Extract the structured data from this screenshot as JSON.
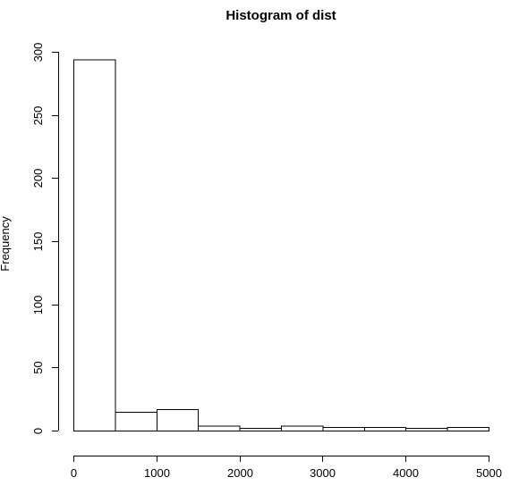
{
  "chart_data": {
    "type": "bar",
    "title": "Histogram of dist",
    "xlabel": "",
    "ylabel": "Frequency",
    "bins": [
      {
        "start": 0,
        "end": 500,
        "count": 294
      },
      {
        "start": 500,
        "end": 1000,
        "count": 15
      },
      {
        "start": 1000,
        "end": 1500,
        "count": 17
      },
      {
        "start": 1500,
        "end": 2000,
        "count": 4
      },
      {
        "start": 2000,
        "end": 2500,
        "count": 2
      },
      {
        "start": 2500,
        "end": 3000,
        "count": 4
      },
      {
        "start": 3000,
        "end": 3500,
        "count": 3
      },
      {
        "start": 3500,
        "end": 4000,
        "count": 3
      },
      {
        "start": 4000,
        "end": 4500,
        "count": 2
      },
      {
        "start": 4500,
        "end": 5000,
        "count": 3
      }
    ],
    "xlim": [
      0,
      5000
    ],
    "ylim": [
      0,
      300
    ],
    "x_ticks": [
      "0",
      "1000",
      "2000",
      "3000",
      "4000",
      "5000"
    ],
    "y_ticks": [
      "0",
      "50",
      "100",
      "150",
      "200",
      "250",
      "300"
    ],
    "grid": false,
    "legend": "none"
  }
}
